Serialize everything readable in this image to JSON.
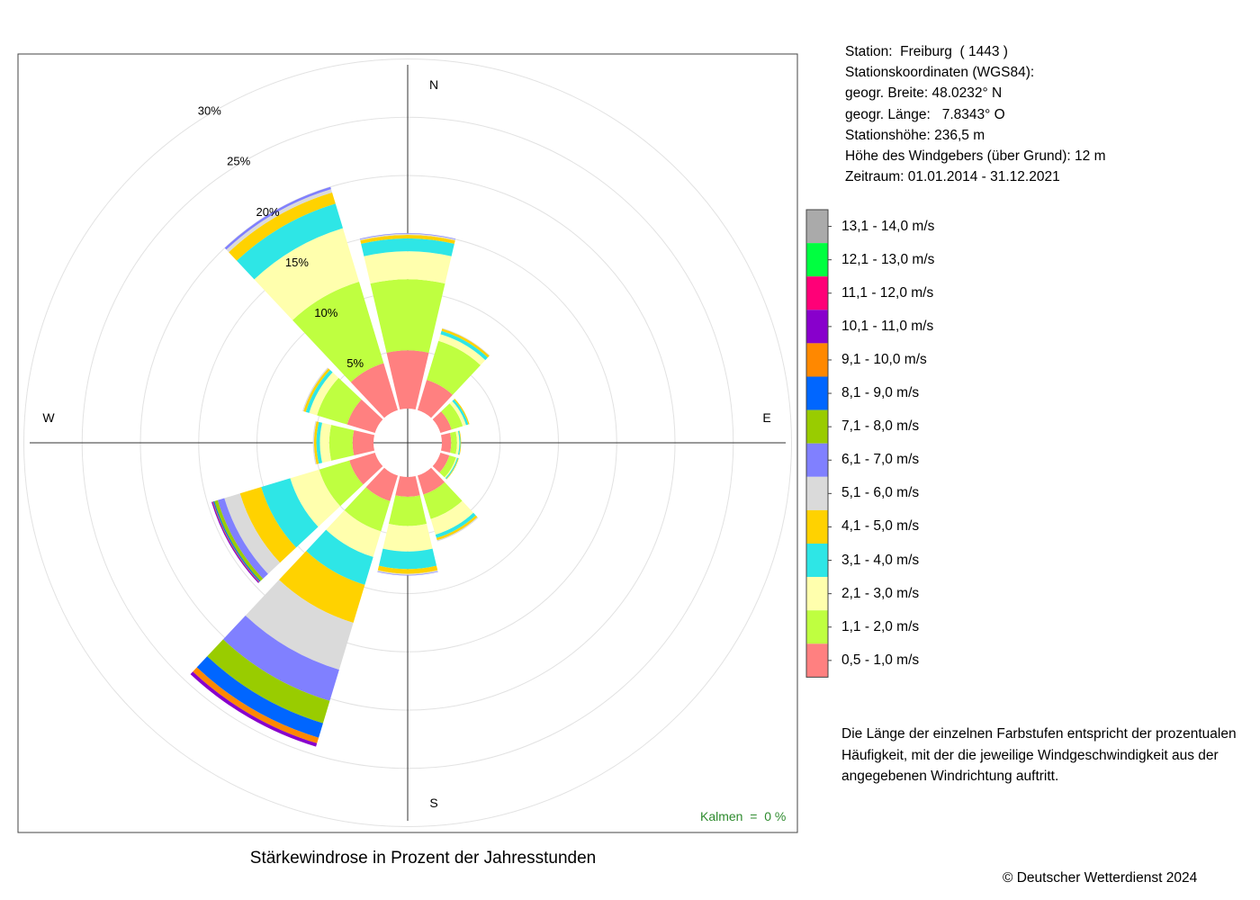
{
  "station": {
    "line1": "Station:  Freiburg  ( 1443 )",
    "line2": "Stationskoordinaten (WGS84):",
    "line3": "geogr. Breite: 48.0232° N",
    "line4": "geogr. Länge:   7.8343° O",
    "line5": "Stationshöhe: 236,5 m",
    "line6": "Höhe des Windgebers (über Grund): 12 m",
    "line7": "Zeitraum: 01.01.2014 - 31.12.2021"
  },
  "note": {
    "line1": "Die Länge der einzelnen Farbstufen entspricht der prozentualen",
    "line2": "Häufigkeit, mit der die jeweilige Windgeschwindigkeit aus der",
    "line3": "angegebenen Windrichtung auftritt."
  },
  "footer": {
    "title": "Stärkewindrose in Prozent der Jahresstunden",
    "copyright": "© Deutscher Wetterdienst  2024"
  },
  "calm": {
    "text": "Kalmen  =  0 %"
  },
  "chart_data": {
    "type": "wind-rose",
    "title": "Stärkewindrose in Prozent der Jahresstunden",
    "radial_unit": "%",
    "radial_ticks": [
      5,
      10,
      15,
      20,
      25,
      30
    ],
    "radial_tick_labels": [
      "5%",
      "10%",
      "15%",
      "20%",
      "25%",
      "30%"
    ],
    "compass_labels": {
      "N": "N",
      "E": "E",
      "S": "S",
      "W": "W"
    },
    "directions_deg": [
      0,
      30,
      60,
      90,
      120,
      150,
      180,
      210,
      240,
      270,
      300,
      330
    ],
    "speed_classes": [
      {
        "label": "0,5 - 1,0 m/s",
        "color": "#ff8080"
      },
      {
        "label": "1,1 - 2,0 m/s",
        "color": "#bfff40"
      },
      {
        "label": "2,1 - 3,0 m/s",
        "color": "#ffffad"
      },
      {
        "label": "3,1 - 4,0 m/s",
        "color": "#2ee6e6"
      },
      {
        "label": "4,1 - 5,0 m/s",
        "color": "#ffd200"
      },
      {
        "label": "5,1 - 6,0 m/s",
        "color": "#dadada"
      },
      {
        "label": "6,1 - 7,0 m/s",
        "color": "#8080ff"
      },
      {
        "label": "7,1 - 8,0 m/s",
        "color": "#99cc00"
      },
      {
        "label": "8,1 - 9,0 m/s",
        "color": "#0066ff"
      },
      {
        "label": "9,1 - 10,0 m/s",
        "color": "#ff8800"
      },
      {
        "label": "10,1 - 11,0 m/s",
        "color": "#8800cc"
      },
      {
        "label": "11,1 - 12,0 m/s",
        "color": "#ff0077"
      },
      {
        "label": "12,1 - 13,0 m/s",
        "color": "#00ff40"
      },
      {
        "label": "13,1 - 14,0 m/s",
        "color": "#aaaaaa"
      }
    ],
    "series": [
      {
        "direction": 0,
        "values": [
          5.0,
          6.1,
          2.4,
          1.1,
          0.3,
          0.1,
          0.05,
          0,
          0,
          0,
          0,
          0,
          0,
          0
        ]
      },
      {
        "direction": 30,
        "values": [
          2.7,
          3.5,
          0.6,
          0.3,
          0.2,
          0.05,
          0,
          0,
          0,
          0,
          0,
          0,
          0,
          0
        ]
      },
      {
        "direction": 60,
        "values": [
          1.0,
          1.0,
          0.3,
          0.2,
          0.1,
          0,
          0,
          0,
          0,
          0,
          0,
          0,
          0,
          0
        ]
      },
      {
        "direction": 90,
        "values": [
          0.8,
          0.5,
          0.2,
          0.1,
          0.05,
          0,
          0,
          0,
          0,
          0,
          0,
          0,
          0,
          0
        ]
      },
      {
        "direction": 120,
        "values": [
          0.8,
          0.6,
          0.1,
          0.1,
          0.05,
          0,
          0,
          0,
          0,
          0,
          0,
          0,
          0,
          0
        ]
      },
      {
        "direction": 150,
        "values": [
          1.7,
          2.2,
          1.4,
          0.3,
          0.2,
          0.1,
          0,
          0,
          0,
          0,
          0,
          0,
          0,
          0
        ]
      },
      {
        "direction": 180,
        "values": [
          1.7,
          2.5,
          2.2,
          1.5,
          0.4,
          0.1,
          0.05,
          0,
          0,
          0,
          0,
          0,
          0,
          0
        ]
      },
      {
        "direction": 210,
        "values": [
          2.3,
          2.7,
          2.3,
          2.5,
          3.4,
          4.2,
          2.8,
          2.0,
          1.3,
          0.5,
          0.3,
          0,
          0,
          0
        ]
      },
      {
        "direction": 240,
        "values": [
          2.3,
          2.7,
          2.6,
          2.6,
          1.9,
          1.4,
          0.6,
          0.3,
          0.1,
          0.05,
          0.1,
          0,
          0,
          0
        ]
      },
      {
        "direction": 270,
        "values": [
          1.8,
          2.0,
          0.8,
          0.3,
          0.2,
          0.1,
          0,
          0,
          0,
          0,
          0,
          0,
          0,
          0
        ]
      },
      {
        "direction": 300,
        "values": [
          2.5,
          2.7,
          0.7,
          0.3,
          0.2,
          0.1,
          0,
          0,
          0,
          0,
          0,
          0,
          0,
          0
        ]
      },
      {
        "direction": 330,
        "values": [
          4.2,
          7.3,
          4.8,
          2.2,
          1.0,
          0.3,
          0.2,
          0,
          0,
          0,
          0,
          0,
          0,
          0
        ]
      }
    ]
  }
}
